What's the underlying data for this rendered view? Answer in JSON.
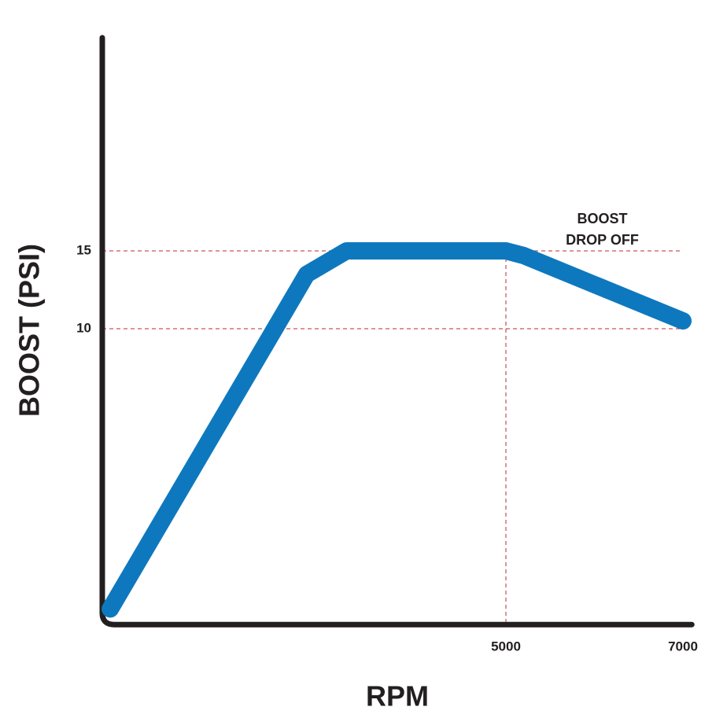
{
  "chart_data": {
    "type": "line",
    "xlabel": "RPM",
    "ylabel": "BOOST (PSI)",
    "annotation": {
      "lines": [
        "BOOST",
        "DROP OFF"
      ],
      "x": 6000,
      "y": 17
    },
    "x": [
      530,
      2750,
      3200,
      5000,
      5200,
      7000
    ],
    "series": [
      {
        "color": "#0e78be",
        "values": [
          -8,
          13.5,
          15,
          15,
          14.7,
          10.5
        ]
      }
    ],
    "xlim": [
      500,
      7100
    ],
    "ylim": [
      -9,
      29
    ],
    "xticks": [
      5000,
      7000
    ],
    "yticks": [
      10,
      15
    ],
    "grid": true,
    "grid_color": "#c1272d"
  }
}
